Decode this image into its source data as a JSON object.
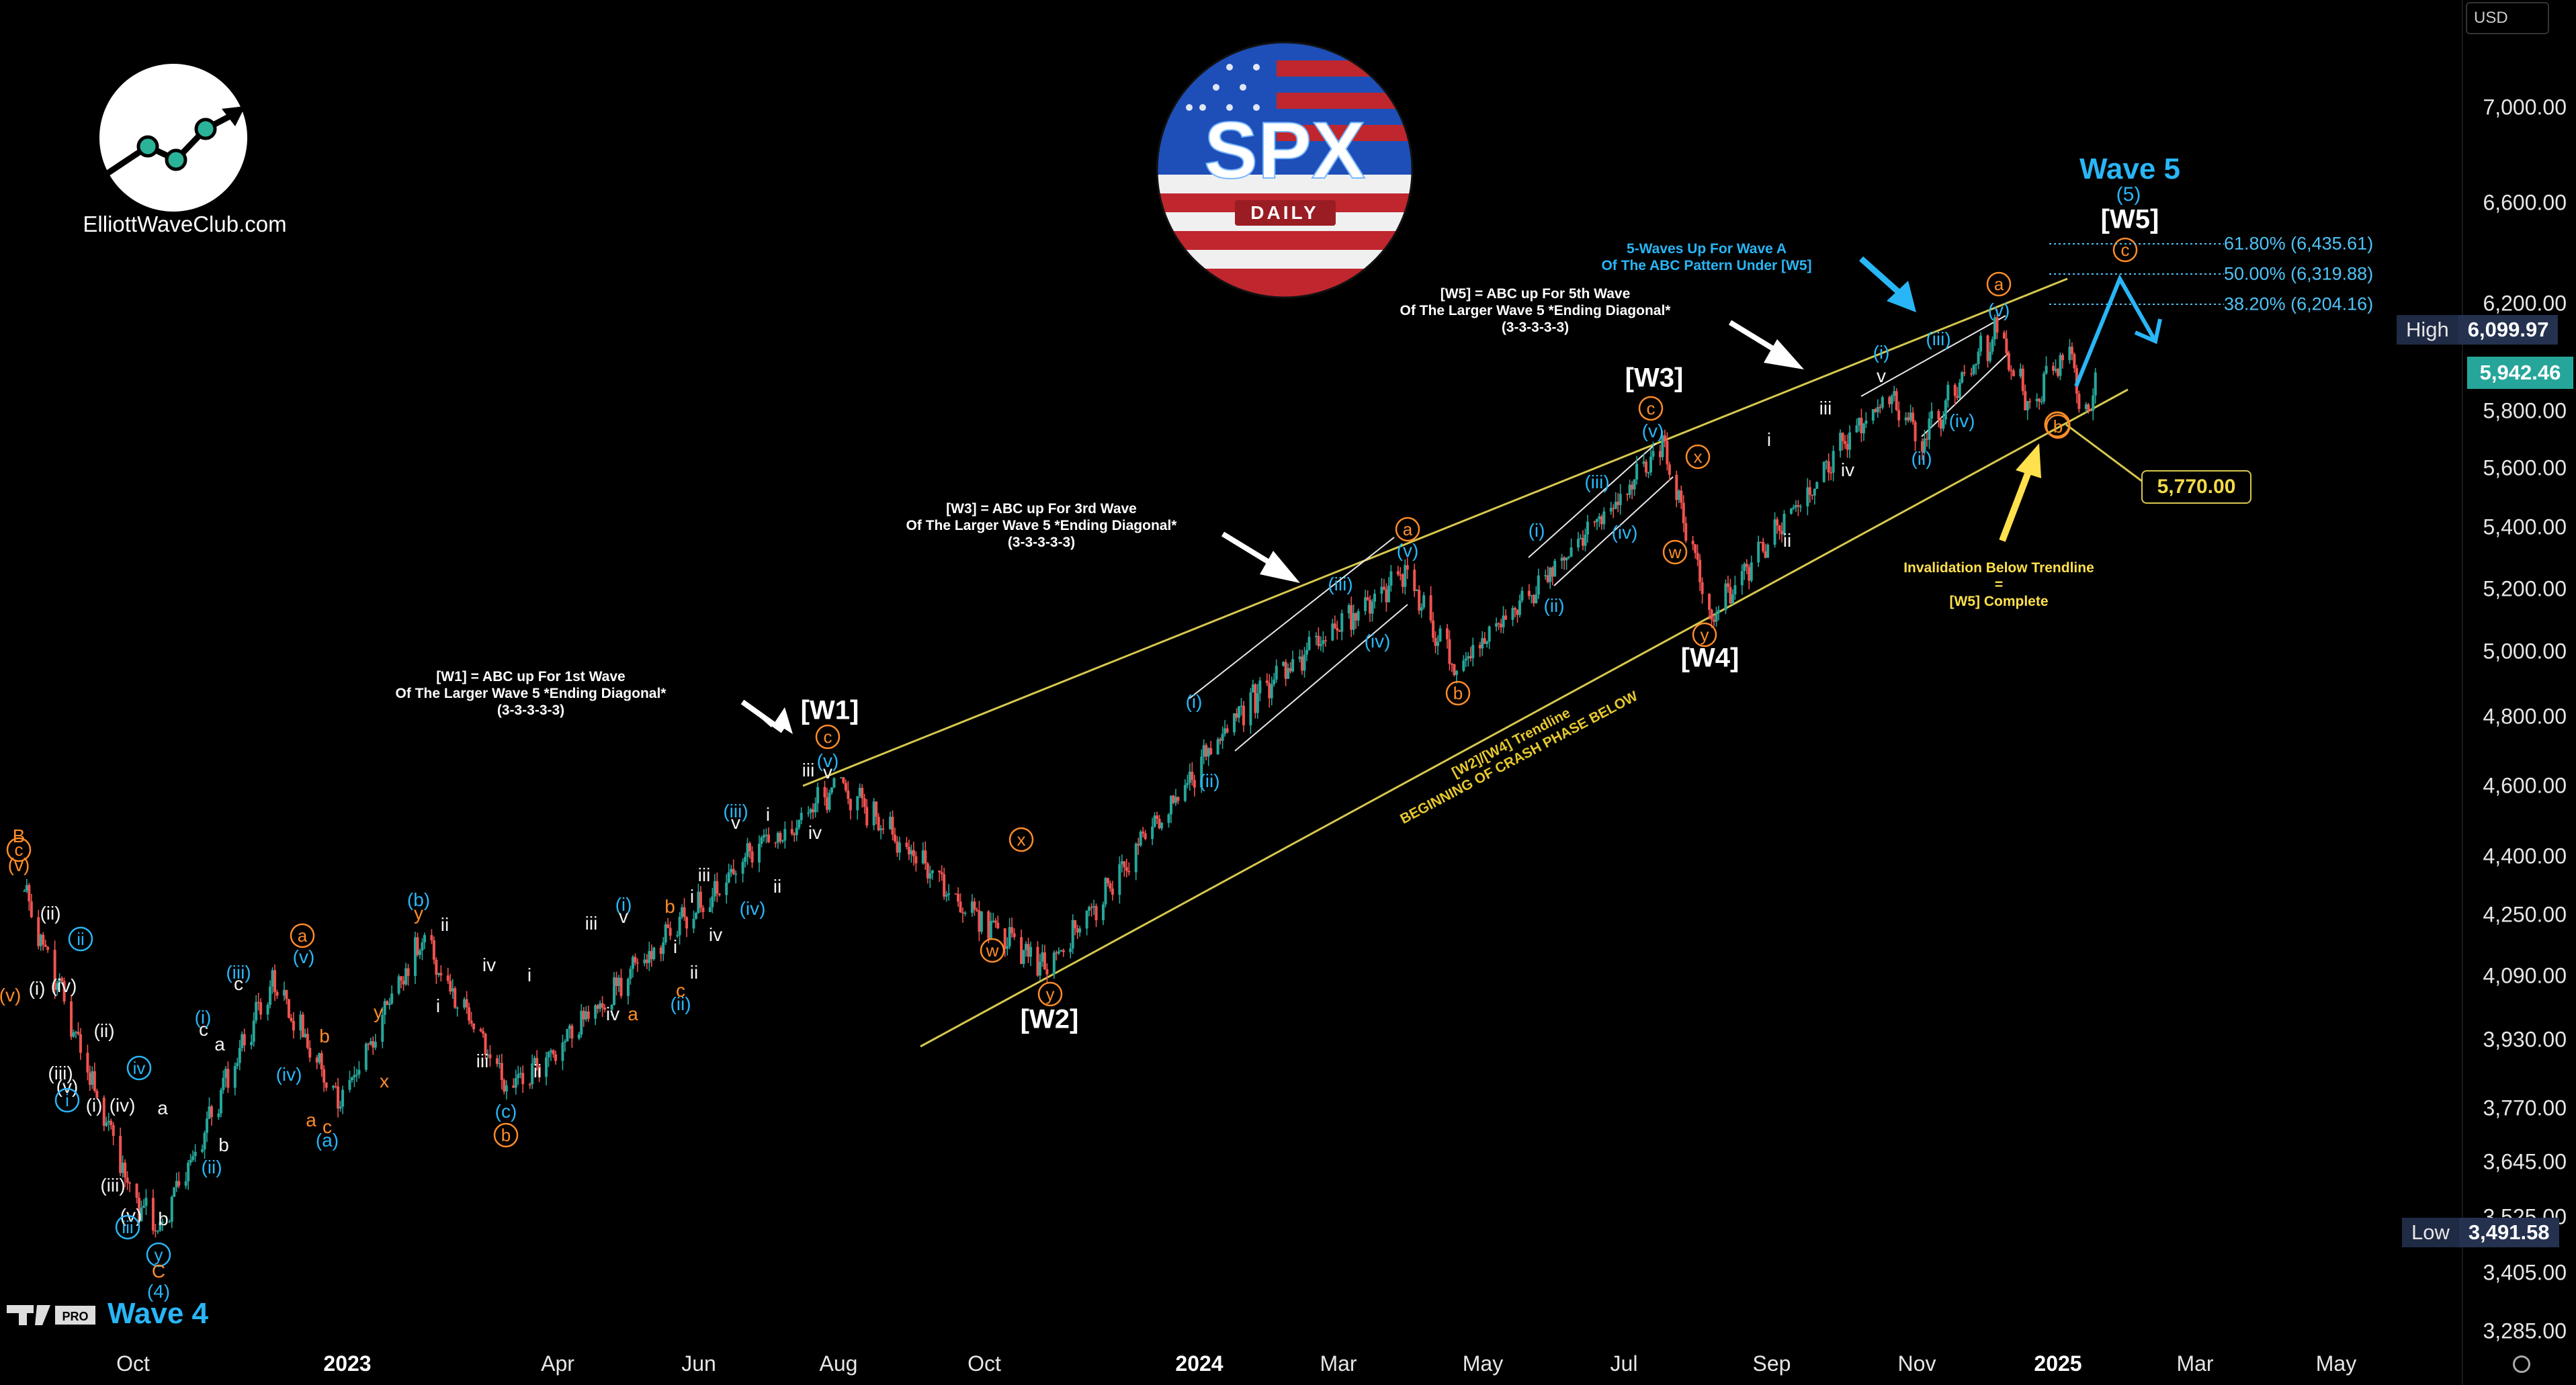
{
  "logo": {
    "site": "ElliottWaveClub.com"
  },
  "badge": {
    "title": "SPX",
    "subtitle": "DAILY"
  },
  "corner": {
    "pro": "PRO",
    "wave": "Wave 4"
  },
  "currency": "USD",
  "colors": {
    "up": "#26a69a",
    "down": "#ef5350",
    "trendline": "#d6c84e",
    "cyan": "#29b6f6",
    "orange": "#ff8c2a",
    "yellow": "#ffe14d",
    "fib": "#4fc3f7",
    "brand_blue": "#1e5bd6",
    "brand_red": "#c0262d"
  },
  "chart_data": {
    "type": "candlestick",
    "title": "SPX",
    "subtitle": "DAILY",
    "y_axis": {
      "scale": "log",
      "ylim": [
        3230,
        7600
      ],
      "ticks": [
        "7,000.00",
        "6,600.00",
        "6,200.00",
        "5,800.00",
        "5,600.00",
        "5,400.00",
        "5,200.00",
        "5,000.00",
        "4,800.00",
        "4,600.00",
        "4,400.00",
        "4,250.00",
        "4,090.00",
        "3,930.00",
        "3,770.00",
        "3,645.00",
        "3,525.00",
        "3,405.00",
        "3,285.00"
      ]
    },
    "x_axis": {
      "ticks": [
        {
          "label": "Oct",
          "bold": false
        },
        {
          "label": "2023",
          "bold": true
        },
        {
          "label": "Apr",
          "bold": false
        },
        {
          "label": "Jun",
          "bold": false
        },
        {
          "label": "Aug",
          "bold": false
        },
        {
          "label": "Oct",
          "bold": false
        },
        {
          "label": "2024",
          "bold": true
        },
        {
          "label": "Mar",
          "bold": false
        },
        {
          "label": "May",
          "bold": false
        },
        {
          "label": "Jul",
          "bold": false
        },
        {
          "label": "Sep",
          "bold": false
        },
        {
          "label": "Nov",
          "bold": false
        },
        {
          "label": "2025",
          "bold": true
        },
        {
          "label": "Mar",
          "bold": false
        },
        {
          "label": "May",
          "bold": false
        }
      ]
    },
    "price_path": [
      [
        "2022-08-16",
        4305
      ],
      [
        "2022-09-30",
        3585
      ],
      [
        "2022-10-13",
        3491.58
      ],
      [
        "2022-11-30",
        4080
      ],
      [
        "2022-12-28",
        3783
      ],
      [
        "2023-02-02",
        4195
      ],
      [
        "2023-03-13",
        3808
      ],
      [
        "2023-06-30",
        4450
      ],
      [
        "2023-07-31",
        4607
      ],
      [
        "2023-09-29",
        4240
      ],
      [
        "2023-10-27",
        4103
      ],
      [
        "2024-01-24",
        4870
      ],
      [
        "2024-03-28",
        5264
      ],
      [
        "2024-04-19",
        4953
      ],
      [
        "2024-07-16",
        5669
      ],
      [
        "2024-08-05",
        5119
      ],
      [
        "2024-10-18",
        5864
      ],
      [
        "2024-11-04",
        5697
      ],
      [
        "2024-12-06",
        6099.97
      ],
      [
        "2024-12-19",
        5830
      ],
      [
        "2025-01-06",
        6020
      ],
      [
        "2025-01-13",
        5773
      ],
      [
        "2025-01-17",
        5942.46
      ]
    ],
    "stats": {
      "high": "6,099.97",
      "low": "3,491.58",
      "last": "5,942.46",
      "currency": "USD"
    },
    "fibonacci": [
      {
        "ratio": "61.80%",
        "value": "6,435.61"
      },
      {
        "ratio": "50.00%",
        "value": "6,319.88"
      },
      {
        "ratio": "38.20%",
        "value": "6,204.16"
      }
    ],
    "invalidation_level": "5,770.00",
    "major_waves": [
      {
        "label": "[W1]",
        "date": "2023-07-31",
        "price": 4607
      },
      {
        "label": "[W2]",
        "date": "2023-10-27",
        "price": 4103
      },
      {
        "label": "[W3]",
        "date": "2024-07-16",
        "price": 5669
      },
      {
        "label": "[W4]",
        "date": "2024-08-05",
        "price": 5119
      },
      {
        "label": "[W5]",
        "date": "2025-02-19",
        "price": 6435
      }
    ],
    "trendlines": [
      {
        "name": "[W2]/[W4] Trendline",
        "from": [
          "2023-11-01",
          3950
        ],
        "to": [
          "2025-02-10",
          5900
        ]
      },
      {
        "name": "upper",
        "from": [
          "2023-07-31",
          4640
        ],
        "to": [
          "2025-01-24",
          6260
        ]
      }
    ],
    "annotations": [
      {
        "id": "a-w1",
        "lines": [
          "[W1] = ABC up For 1st Wave",
          "Of The Larger Wave 5 *Ending Diagonal*",
          "(3-3-3-3-3)"
        ]
      },
      {
        "id": "a-w3",
        "lines": [
          "[W3] = ABC up For 3rd Wave",
          "Of The Larger Wave 5 *Ending Diagonal*",
          "(3-3-3-3-3)"
        ]
      },
      {
        "id": "a-w5",
        "lines": [
          "[W5] = ABC up For 5th Wave",
          "Of The Larger Wave 5 *Ending Diagonal*",
          "(3-3-3-3-3)"
        ]
      },
      {
        "id": "a-5w",
        "lines": [
          "5-Waves Up For Wave A",
          "Of The ABC Pattern Under [W5]"
        ]
      },
      {
        "id": "a-inv",
        "lines": [
          "Invalidation Below Trendline",
          "=",
          "[W5] Complete"
        ]
      },
      {
        "id": "a-tl",
        "lines": [
          "[W2]/[W4] Trendline",
          "BEGINNING OF CRASH PHASE BELOW"
        ]
      }
    ],
    "wave5": {
      "title": "Wave 5",
      "sub": "(5)"
    },
    "grid": false,
    "legend": "none"
  },
  "wave_marks": [
    {
      "t": "(v)",
      "x": 15,
      "y": 1482,
      "c": "orange",
      "k": "plain"
    },
    {
      "t": "B",
      "x": 28,
      "y": 1245,
      "c": "orange",
      "k": "plain"
    },
    {
      "t": "c",
      "x": 28,
      "y": 1265,
      "c": "orange",
      "k": "circle"
    },
    {
      "t": "(v)",
      "x": 28,
      "y": 1288,
      "c": "orange",
      "k": "plain"
    },
    {
      "t": "(ii)",
      "x": 75,
      "y": 1360,
      "c": "white",
      "k": "plain"
    },
    {
      "t": "ii",
      "x": 120,
      "y": 1398,
      "c": "cyan",
      "k": "circle"
    },
    {
      "t": "(i)",
      "x": 55,
      "y": 1472,
      "c": "white",
      "k": "plain"
    },
    {
      "t": "(iv)",
      "x": 95,
      "y": 1468,
      "c": "white",
      "k": "plain"
    },
    {
      "t": "(ii)",
      "x": 155,
      "y": 1535,
      "c": "white",
      "k": "plain"
    },
    {
      "t": "(iii)",
      "x": 90,
      "y": 1598,
      "c": "white",
      "k": "plain"
    },
    {
      "t": "(v)",
      "x": 100,
      "y": 1618,
      "c": "white",
      "k": "plain"
    },
    {
      "t": "i",
      "x": 100,
      "y": 1638,
      "c": "cyan",
      "k": "circle"
    },
    {
      "t": "(i)",
      "x": 140,
      "y": 1646,
      "c": "white",
      "k": "plain"
    },
    {
      "t": "(iv)",
      "x": 182,
      "y": 1646,
      "c": "white",
      "k": "plain"
    },
    {
      "t": "iv",
      "x": 207,
      "y": 1590,
      "c": "cyan",
      "k": "circle"
    },
    {
      "t": "a",
      "x": 242,
      "y": 1650,
      "c": "white",
      "k": "plain"
    },
    {
      "t": "(iii)",
      "x": 168,
      "y": 1765,
      "c": "white",
      "k": "plain"
    },
    {
      "t": "(v)",
      "x": 195,
      "y": 1810,
      "c": "white",
      "k": "plain"
    },
    {
      "t": "iii",
      "x": 190,
      "y": 1827,
      "c": "cyan",
      "k": "circle"
    },
    {
      "t": "b",
      "x": 243,
      "y": 1815,
      "c": "white",
      "k": "plain"
    },
    {
      "t": "y",
      "x": 236,
      "y": 1868,
      "c": "cyan",
      "k": "circle"
    },
    {
      "t": "C",
      "x": 236,
      "y": 1893,
      "c": "orange",
      "k": "plain"
    },
    {
      "t": "(4)",
      "x": 236,
      "y": 1923,
      "c": "cyan",
      "k": "plain"
    },
    {
      "t": "c",
      "x": 303,
      "y": 1533,
      "c": "white",
      "k": "plain"
    },
    {
      "t": "a",
      "x": 327,
      "y": 1555,
      "c": "white",
      "k": "plain"
    },
    {
      "t": "b",
      "x": 333,
      "y": 1705,
      "c": "white",
      "k": "plain"
    },
    {
      "t": "(i)",
      "x": 302,
      "y": 1515,
      "c": "cyan",
      "k": "plain"
    },
    {
      "t": "(ii)",
      "x": 315,
      "y": 1738,
      "c": "cyan",
      "k": "plain"
    },
    {
      "t": "(iii)",
      "x": 355,
      "y": 1448,
      "c": "cyan",
      "k": "plain"
    },
    {
      "t": "c",
      "x": 355,
      "y": 1465,
      "c": "white",
      "k": "plain"
    },
    {
      "t": "(iv)",
      "x": 430,
      "y": 1600,
      "c": "cyan",
      "k": "plain"
    },
    {
      "t": "a",
      "x": 450,
      "y": 1393,
      "c": "orange",
      "k": "circle"
    },
    {
      "t": "(v)",
      "x": 452,
      "y": 1425,
      "c": "cyan",
      "k": "plain"
    },
    {
      "t": "b",
      "x": 483,
      "y": 1543,
      "c": "orange",
      "k": "plain"
    },
    {
      "t": "x",
      "x": 572,
      "y": 1610,
      "c": "orange",
      "k": "plain"
    },
    {
      "t": "a",
      "x": 463,
      "y": 1668,
      "c": "orange",
      "k": "plain"
    },
    {
      "t": "c",
      "x": 487,
      "y": 1678,
      "c": "orange",
      "k": "plain"
    },
    {
      "t": "(a)",
      "x": 487,
      "y": 1698,
      "c": "cyan",
      "k": "plain"
    },
    {
      "t": "y",
      "x": 563,
      "y": 1507,
      "c": "orange",
      "k": "plain"
    },
    {
      "t": "(b)",
      "x": 623,
      "y": 1340,
      "c": "cyan",
      "k": "plain"
    },
    {
      "t": "y",
      "x": 623,
      "y": 1360,
      "c": "orange",
      "k": "plain"
    },
    {
      "t": "ii",
      "x": 662,
      "y": 1377,
      "c": "white",
      "k": "plain"
    },
    {
      "t": "i",
      "x": 652,
      "y": 1498,
      "c": "white",
      "k": "plain"
    },
    {
      "t": "iv",
      "x": 728,
      "y": 1437,
      "c": "white",
      "k": "plain"
    },
    {
      "t": "i",
      "x": 788,
      "y": 1452,
      "c": "white",
      "k": "plain"
    },
    {
      "t": "iii",
      "x": 718,
      "y": 1580,
      "c": "white",
      "k": "plain"
    },
    {
      "t": "ii",
      "x": 800,
      "y": 1595,
      "c": "white",
      "k": "plain"
    },
    {
      "t": "(c)",
      "x": 753,
      "y": 1655,
      "c": "cyan",
      "k": "plain"
    },
    {
      "t": "b",
      "x": 753,
      "y": 1690,
      "c": "orange",
      "k": "circle"
    },
    {
      "t": "iii",
      "x": 880,
      "y": 1375,
      "c": "white",
      "k": "plain"
    },
    {
      "t": "(i)",
      "x": 928,
      "y": 1347,
      "c": "cyan",
      "k": "plain"
    },
    {
      "t": "v",
      "x": 928,
      "y": 1365,
      "c": "white",
      "k": "plain"
    },
    {
      "t": "iv",
      "x": 912,
      "y": 1510,
      "c": "white",
      "k": "plain"
    },
    {
      "t": "a",
      "x": 942,
      "y": 1510,
      "c": "orange",
      "k": "plain"
    },
    {
      "t": "b",
      "x": 997,
      "y": 1350,
      "c": "orange",
      "k": "plain"
    },
    {
      "t": "i",
      "x": 1005,
      "y": 1410,
      "c": "white",
      "k": "plain"
    },
    {
      "t": "c",
      "x": 1013,
      "y": 1475,
      "c": "orange",
      "k": "plain"
    },
    {
      "t": "ii",
      "x": 1033,
      "y": 1448,
      "c": "white",
      "k": "plain"
    },
    {
      "t": "(ii)",
      "x": 1013,
      "y": 1495,
      "c": "cyan",
      "k": "plain"
    },
    {
      "t": "i",
      "x": 1030,
      "y": 1335,
      "c": "white",
      "k": "plain"
    },
    {
      "t": "iii",
      "x": 1048,
      "y": 1303,
      "c": "white",
      "k": "plain"
    },
    {
      "t": "iv",
      "x": 1065,
      "y": 1392,
      "c": "white",
      "k": "plain"
    },
    {
      "t": "(iii)",
      "x": 1095,
      "y": 1208,
      "c": "cyan",
      "k": "plain"
    },
    {
      "t": "v",
      "x": 1095,
      "y": 1225,
      "c": "white",
      "k": "plain"
    },
    {
      "t": "(iv)",
      "x": 1120,
      "y": 1353,
      "c": "cyan",
      "k": "plain"
    },
    {
      "t": "i",
      "x": 1143,
      "y": 1213,
      "c": "white",
      "k": "plain"
    },
    {
      "t": "ii",
      "x": 1157,
      "y": 1320,
      "c": "white",
      "k": "plain"
    },
    {
      "t": "iii",
      "x": 1203,
      "y": 1147,
      "c": "white",
      "k": "plain"
    },
    {
      "t": "c",
      "x": 1232,
      "y": 1097,
      "c": "orange",
      "k": "circle"
    },
    {
      "t": "(v)",
      "x": 1232,
      "y": 1133,
      "c": "cyan",
      "k": "plain"
    },
    {
      "t": "v",
      "x": 1232,
      "y": 1150,
      "c": "white",
      "k": "plain"
    },
    {
      "t": "iv",
      "x": 1213,
      "y": 1240,
      "c": "white",
      "k": "plain"
    },
    {
      "t": "x",
      "x": 1520,
      "y": 1250,
      "c": "orange",
      "k": "circle"
    },
    {
      "t": "w",
      "x": 1477,
      "y": 1415,
      "c": "orange",
      "k": "circle"
    },
    {
      "t": "y",
      "x": 1563,
      "y": 1480,
      "c": "orange",
      "k": "circle"
    },
    {
      "t": "(i)",
      "x": 1777,
      "y": 1045,
      "c": "cyan",
      "k": "plain"
    },
    {
      "t": "(ii)",
      "x": 1800,
      "y": 1163,
      "c": "cyan",
      "k": "plain"
    },
    {
      "t": "(iii)",
      "x": 1995,
      "y": 870,
      "c": "cyan",
      "k": "plain"
    },
    {
      "t": "(iv)",
      "x": 2050,
      "y": 955,
      "c": "cyan",
      "k": "plain"
    },
    {
      "t": "a",
      "x": 2095,
      "y": 788,
      "c": "orange",
      "k": "circle"
    },
    {
      "t": "(v)",
      "x": 2095,
      "y": 820,
      "c": "cyan",
      "k": "plain"
    },
    {
      "t": "b",
      "x": 2170,
      "y": 1032,
      "c": "orange",
      "k": "circle"
    },
    {
      "t": "(i)",
      "x": 2287,
      "y": 790,
      "c": "cyan",
      "k": "plain"
    },
    {
      "t": "(ii)",
      "x": 2313,
      "y": 902,
      "c": "cyan",
      "k": "plain"
    },
    {
      "t": "(iii)",
      "x": 2377,
      "y": 718,
      "c": "cyan",
      "k": "plain"
    },
    {
      "t": "(iv)",
      "x": 2418,
      "y": 793,
      "c": "cyan",
      "k": "plain"
    },
    {
      "t": "c",
      "x": 2457,
      "y": 608,
      "c": "orange",
      "k": "circle"
    },
    {
      "t": "(v)",
      "x": 2460,
      "y": 642,
      "c": "cyan",
      "k": "plain"
    },
    {
      "t": "x",
      "x": 2527,
      "y": 680,
      "c": "orange",
      "k": "circle"
    },
    {
      "t": "w",
      "x": 2493,
      "y": 822,
      "c": "orange",
      "k": "circle"
    },
    {
      "t": "y",
      "x": 2537,
      "y": 945,
      "c": "orange",
      "k": "circle"
    },
    {
      "t": "i",
      "x": 2633,
      "y": 655,
      "c": "white",
      "k": "plain"
    },
    {
      "t": "ii",
      "x": 2660,
      "y": 805,
      "c": "white",
      "k": "plain"
    },
    {
      "t": "iii",
      "x": 2717,
      "y": 608,
      "c": "white",
      "k": "plain"
    },
    {
      "t": "iv",
      "x": 2750,
      "y": 700,
      "c": "white",
      "k": "plain"
    },
    {
      "t": "(i)",
      "x": 2800,
      "y": 525,
      "c": "cyan",
      "k": "plain"
    },
    {
      "t": "v",
      "x": 2800,
      "y": 560,
      "c": "white",
      "k": "plain"
    },
    {
      "t": "(ii)",
      "x": 2860,
      "y": 683,
      "c": "cyan",
      "k": "plain"
    },
    {
      "t": "(iii)",
      "x": 2885,
      "y": 505,
      "c": "cyan",
      "k": "plain"
    },
    {
      "t": "(iv)",
      "x": 2920,
      "y": 627,
      "c": "cyan",
      "k": "plain"
    },
    {
      "t": "a",
      "x": 2975,
      "y": 423,
      "c": "orange",
      "k": "circle"
    },
    {
      "t": "(v)",
      "x": 2975,
      "y": 462,
      "c": "cyan",
      "k": "plain"
    },
    {
      "t": "b",
      "x": 3063,
      "y": 635,
      "c": "orange",
      "k": "circle"
    },
    {
      "t": "c",
      "x": 3163,
      "y": 372,
      "c": "orange",
      "k": "circle"
    }
  ]
}
